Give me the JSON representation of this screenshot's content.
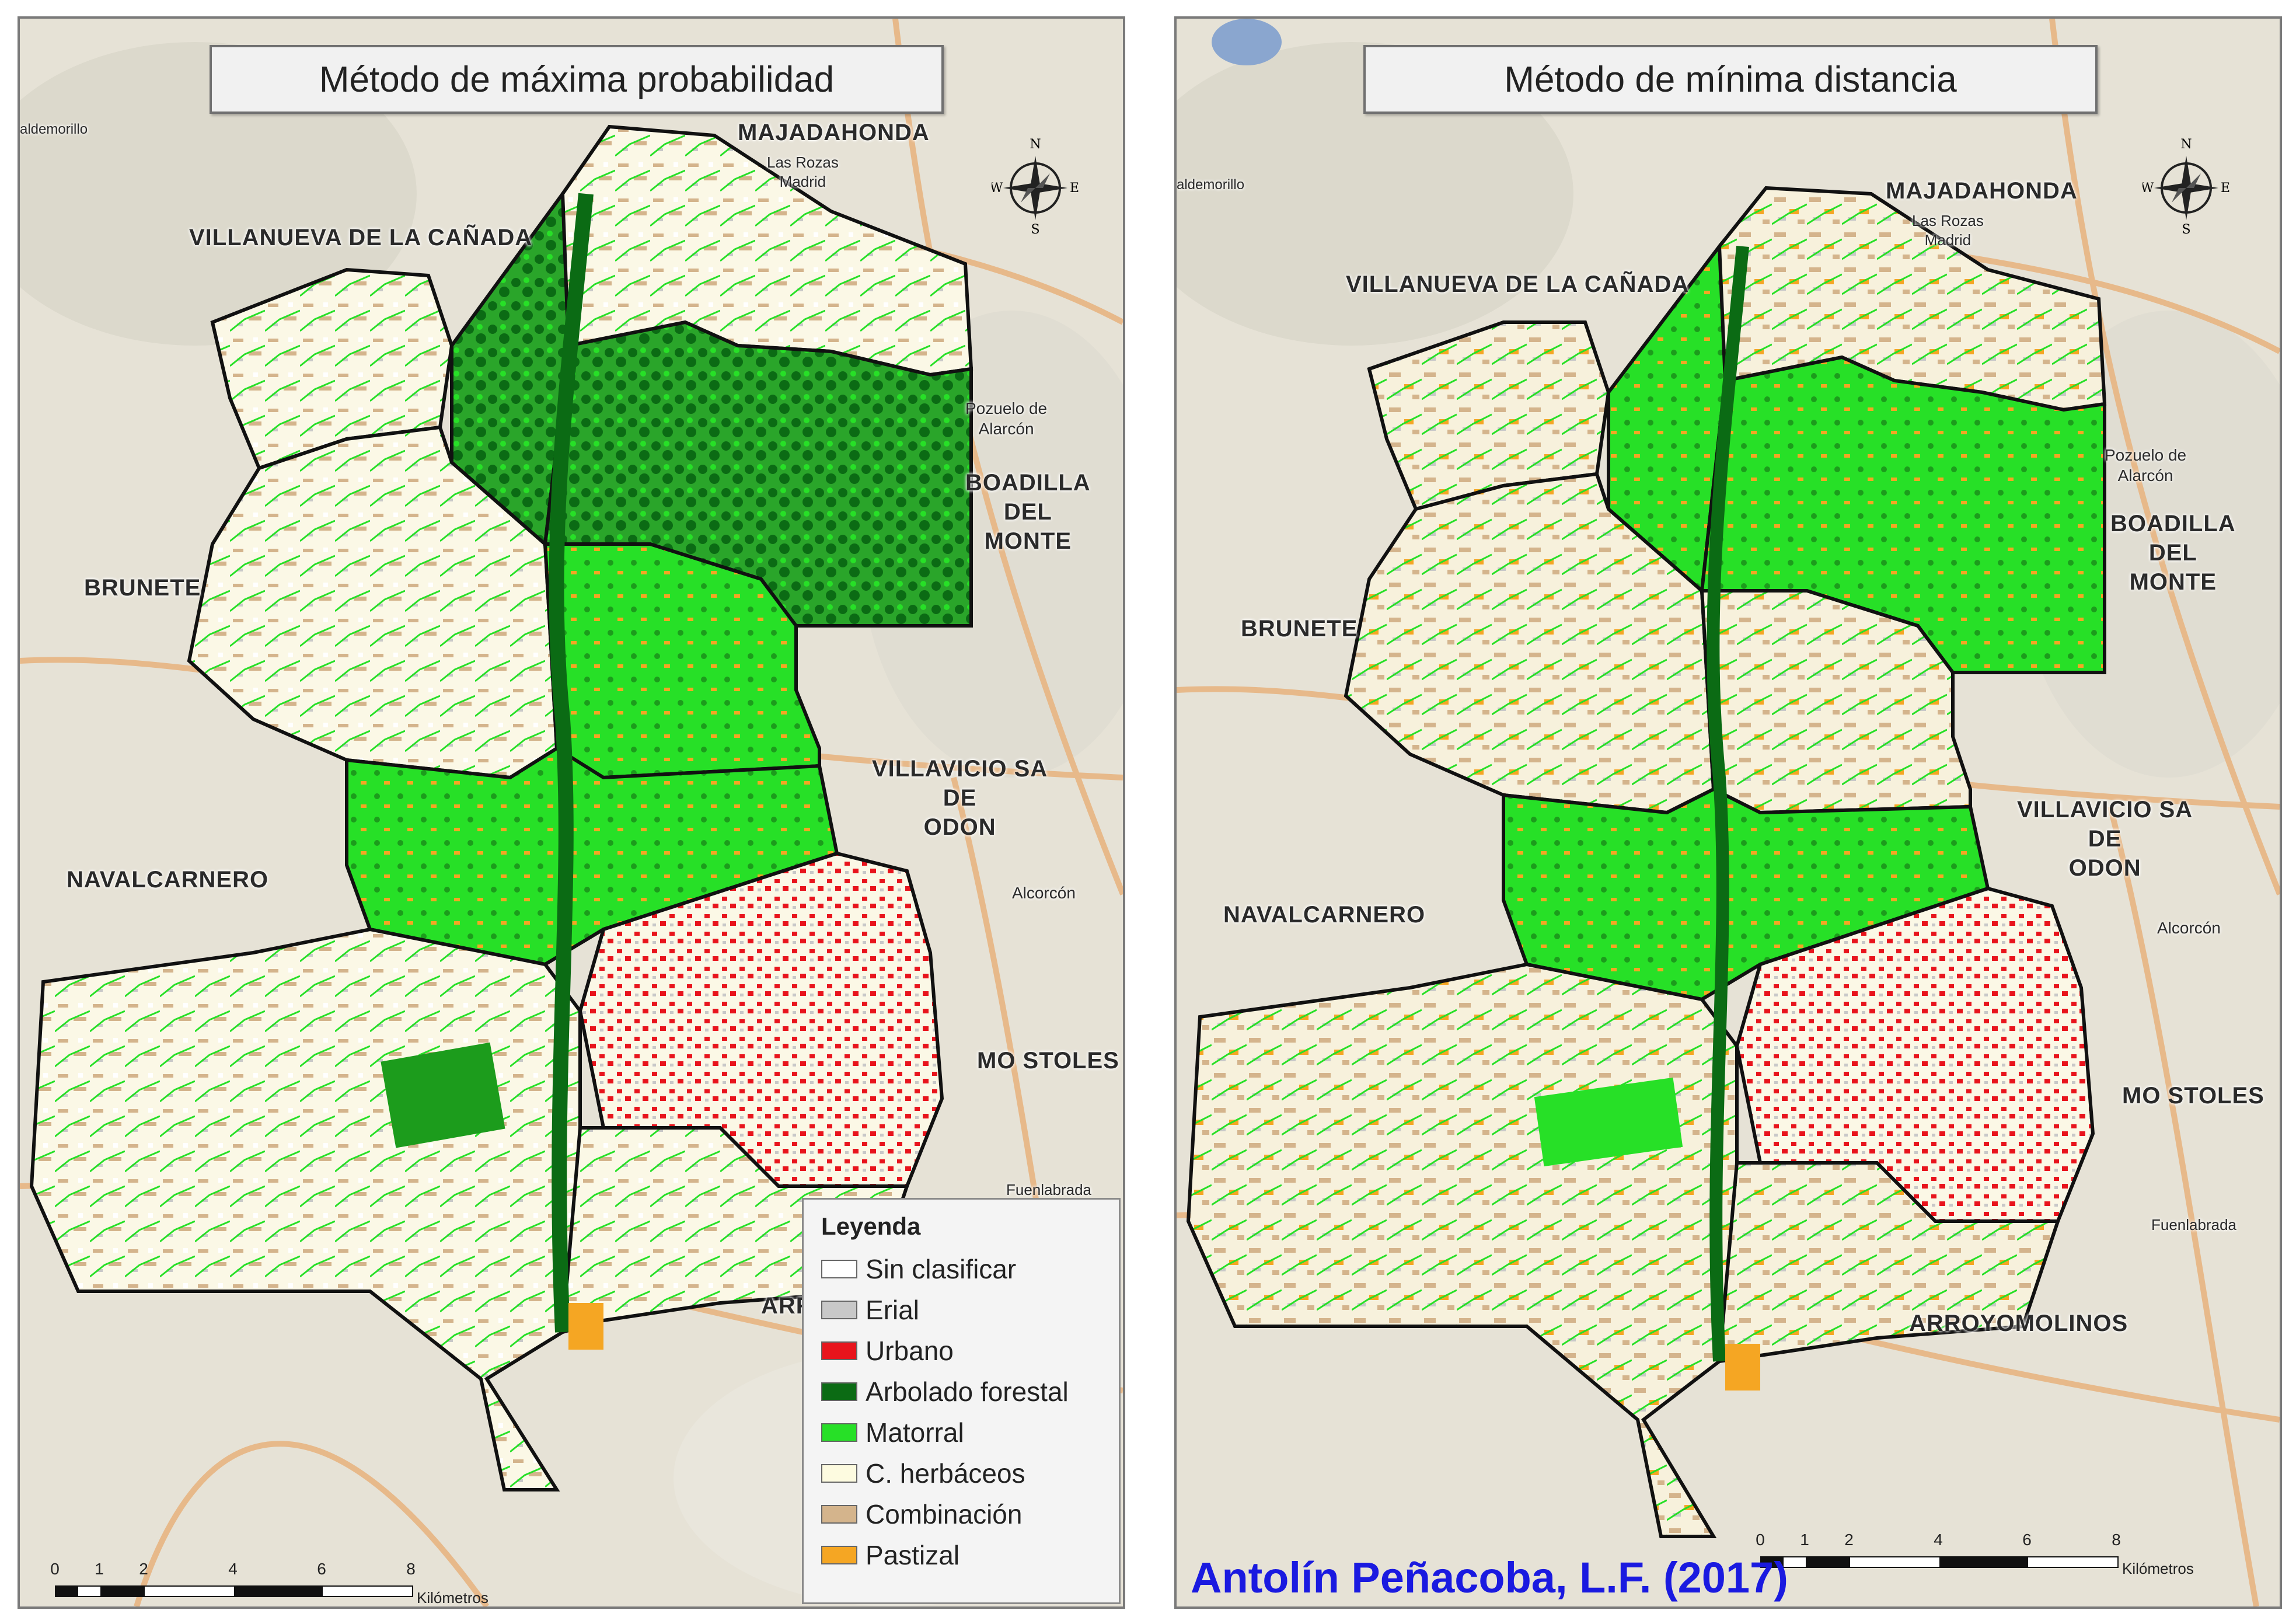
{
  "panels": {
    "left": {
      "title": "Método de máxima probabilidad"
    },
    "right": {
      "title": "Método de mínima distancia"
    }
  },
  "places": {
    "majadahonda": "MAJADAHONDA",
    "las_rozas": "Las Rozas\nMadrid",
    "villanueva": "VILLANUEVA DE LA CAÑADA",
    "valdemorillo": "aldemorillo",
    "pozuelo": "Pozuelo de\nAlarcón",
    "boadilla": "BOADILLA\nDEL\nMONTE",
    "brunete": "BRUNETE",
    "villaviciosa": "VILLAVICIO SA\nDE\nODON",
    "navalcarnero": "NAVALCARNERO",
    "alcorcon": "Alcorcón",
    "mostoles": "MO STOLES",
    "fuenlabrada": "Fuenlabrada",
    "arroyomolinos": "ARROYOMOLINOS",
    "arroyomolinos_partial": "ARR"
  },
  "legend": {
    "title": "Leyenda",
    "items": [
      {
        "label": "Sin clasificar",
        "color": "#ffffff"
      },
      {
        "label": "Erial",
        "color": "#c8c8c8"
      },
      {
        "label": "Urbano",
        "color": "#e8141c"
      },
      {
        "label": "Arbolado forestal",
        "color": "#0b6b14"
      },
      {
        "label": "Matorral",
        "color": "#27e027"
      },
      {
        "label": "C. herbáceos",
        "color": "#fdfbe0"
      },
      {
        "label": "Combinación",
        "color": "#d4b48c"
      },
      {
        "label": "Pastizal",
        "color": "#f5a623"
      }
    ]
  },
  "scale": {
    "ticks": [
      "0",
      "1",
      "2",
      "4",
      "6",
      "8"
    ],
    "unit": "Kilómetros"
  },
  "compass": {
    "n": "N",
    "s": "S",
    "e": "E",
    "w": "W"
  },
  "credit": "Antolín Peñacoba, L.F. (2017)",
  "colors": {
    "basemap": "#e6e2d6",
    "roads": "#e7b98a",
    "boundary": "#111111"
  }
}
